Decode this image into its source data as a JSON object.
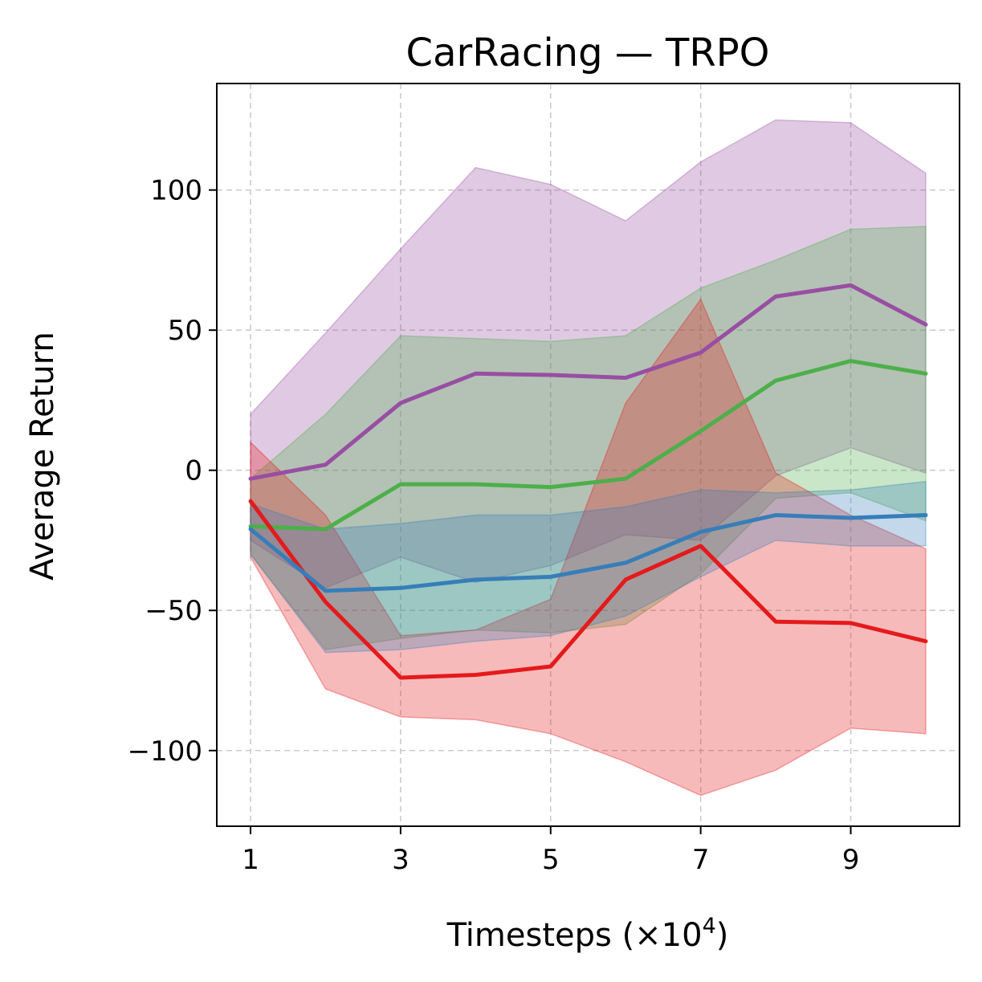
{
  "chart_data": {
    "type": "line",
    "title": "CarRacing — TRPO",
    "xlabel_prefix": "Timesteps (×10",
    "xlabel_exponent": "4",
    "xlabel_suffix": ")",
    "ylabel": "Average Return",
    "xlim": [
      0.55,
      10.45
    ],
    "ylim": [
      -127,
      138
    ],
    "xticks": [
      1,
      3,
      5,
      7,
      9
    ],
    "xtick_labels": [
      "1",
      "3",
      "5",
      "7",
      "9"
    ],
    "yticks": [
      -100,
      -50,
      0,
      50,
      100
    ],
    "ytick_labels": [
      "−100",
      "−50",
      "0",
      "50",
      "100"
    ],
    "grid": true,
    "x": [
      1,
      2,
      3,
      4,
      5,
      6,
      7,
      8,
      9,
      10
    ],
    "series": [
      {
        "name": "series-purple",
        "color": "#984ea3",
        "values": [
          -3,
          2,
          24,
          34.5,
          34,
          33,
          42,
          62,
          66,
          52
        ],
        "upper": [
          20,
          49,
          79,
          108,
          102,
          89,
          110,
          125,
          124,
          106
        ],
        "lower": [
          -25,
          -42,
          -31,
          -40,
          -34,
          -23,
          -25,
          -2,
          8,
          -1
        ]
      },
      {
        "name": "series-green",
        "color": "#4daf4a",
        "values": [
          -20,
          -21,
          -5,
          -5,
          -6,
          -3,
          14,
          32,
          39,
          34.5
        ],
        "upper": [
          -3,
          20,
          48,
          47,
          46,
          48,
          65,
          75,
          86,
          87
        ],
        "lower": [
          -30,
          -64,
          -60,
          -57,
          -58,
          -55,
          -37,
          -10,
          -8,
          -18
        ]
      },
      {
        "name": "series-red",
        "color": "#e41a1c",
        "values": [
          -11,
          -47,
          -74,
          -73,
          -70,
          -39,
          -27,
          -54,
          -54.5,
          -61
        ],
        "upper": [
          10,
          -16,
          -59,
          -57,
          -46,
          24,
          61,
          -1,
          -16,
          -28
        ],
        "lower": [
          -31,
          -78,
          -88,
          -89,
          -94,
          -104,
          -116,
          -107,
          -92,
          -94
        ]
      },
      {
        "name": "series-blue",
        "color": "#377eb8",
        "values": [
          -21,
          -43,
          -42,
          -39,
          -38,
          -33,
          -22,
          -16,
          -17,
          -16
        ],
        "upper": [
          -12,
          -21,
          -19,
          -16,
          -16,
          -13,
          -7,
          -8,
          -7,
          -4
        ],
        "lower": [
          -30,
          -65,
          -64,
          -61,
          -59,
          -52,
          -38,
          -25,
          -27,
          -27
        ]
      }
    ]
  }
}
